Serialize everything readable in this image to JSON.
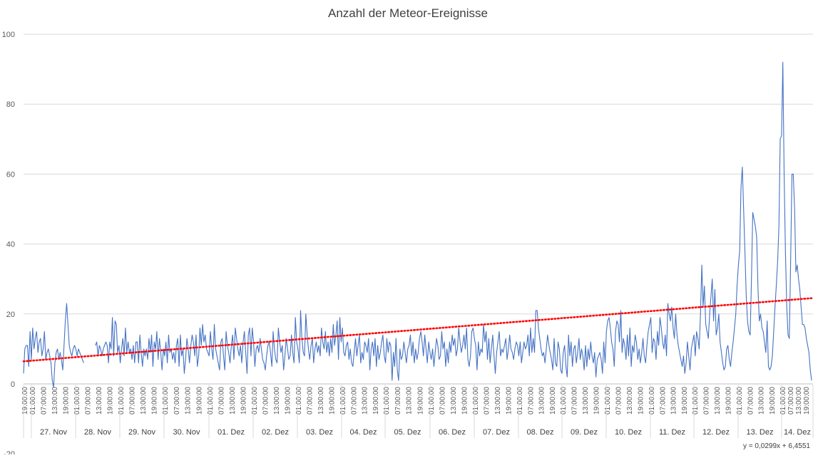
{
  "chart_data": {
    "type": "line",
    "title": "Anzahl der Meteor-Ereignisse",
    "ylim": [
      -20,
      100
    ],
    "y_ticks": [
      100,
      80,
      60,
      40,
      20,
      0,
      -20
    ],
    "grid": "horizontal",
    "x_time_label": "19:00:00",
    "x_tick_cycle": [
      "01:00:00",
      "07:00:00",
      "13:00:00",
      "19:00:00"
    ],
    "x_day_groups": [
      "27. Nov",
      "28. Nov",
      "29. Nov",
      "30. Nov",
      "01. Dez",
      "02. Dez",
      "03. Dez",
      "04. Dez",
      "05. Dez",
      "06. Dez",
      "07. Dez",
      "08. Dez",
      "09. Dez",
      "10. Dez",
      "11. Dez",
      "12. Dez",
      "13. Dez",
      "14. Dez"
    ],
    "series": [
      {
        "type": "line",
        "color": "#4472c4",
        "values": [
          3,
          10,
          11,
          11,
          5,
          15,
          7,
          16,
          10,
          13,
          15,
          9,
          12,
          13,
          8,
          10,
          15,
          7,
          9,
          10,
          8,
          6,
          1,
          -1,
          6,
          9,
          10,
          7,
          9,
          7,
          4,
          11,
          18,
          23,
          17,
          11,
          9,
          8,
          10,
          11,
          10,
          8,
          10,
          9,
          8,
          7,
          6,
          null,
          null,
          null,
          null,
          null,
          null,
          null,
          null,
          11,
          12,
          8,
          11,
          10,
          8,
          10,
          11,
          12,
          11,
          6,
          12,
          10,
          19,
          8,
          18,
          17,
          9,
          11,
          6,
          10,
          13,
          8,
          16,
          9,
          12,
          9,
          10,
          7,
          11,
          6,
          12,
          12,
          6,
          14,
          9,
          5,
          10,
          8,
          10,
          7,
          13,
          9,
          14,
          5,
          12,
          10,
          15,
          7,
          13,
          9,
          4,
          10,
          8,
          12,
          6,
          14,
          9,
          10,
          7,
          9,
          6,
          11,
          13,
          5,
          14,
          8,
          10,
          3,
          7,
          13,
          10,
          6,
          11,
          14,
          12,
          8,
          14,
          5,
          8,
          16,
          11,
          17,
          12,
          14,
          10,
          9,
          8,
          15,
          10,
          7,
          17,
          10,
          8,
          6,
          4,
          12,
          13,
          8,
          4,
          15,
          11,
          9,
          6,
          11,
          14,
          7,
          16,
          13,
          10,
          8,
          11,
          6,
          12,
          15,
          9,
          3,
          14,
          16,
          8,
          16,
          12,
          5,
          10,
          11,
          9,
          13,
          10,
          7,
          6,
          4,
          8,
          11,
          12,
          9,
          5,
          15,
          10,
          7,
          6,
          16,
          12,
          9,
          11,
          4,
          8,
          13,
          10,
          7,
          8,
          14,
          9,
          6,
          19,
          12,
          10,
          6,
          21,
          13,
          9,
          8,
          20,
          14,
          10,
          7,
          11,
          13,
          6,
          10,
          12,
          9,
          11,
          8,
          16,
          12,
          10,
          15,
          9,
          12,
          8,
          13,
          9,
          17,
          11,
          14,
          18,
          7,
          19,
          12,
          16,
          9,
          8,
          11,
          12,
          7,
          10,
          6,
          5,
          9,
          13,
          8,
          11,
          14,
          6,
          9,
          7,
          12,
          11,
          9,
          13,
          4,
          10,
          12,
          8,
          13,
          5,
          11,
          7,
          9,
          12,
          14,
          8,
          6,
          13,
          9,
          12,
          11,
          1,
          9,
          5,
          13,
          4,
          1,
          10,
          7,
          8,
          12,
          9,
          6,
          10,
          11,
          14,
          8,
          12,
          6,
          10,
          7,
          9,
          13,
          15,
          12,
          8,
          14,
          10,
          6,
          12,
          9,
          7,
          10,
          5,
          9,
          13,
          11,
          7,
          8,
          15,
          10,
          12,
          5,
          10,
          6,
          12,
          9,
          14,
          11,
          13,
          8,
          10,
          16,
          12,
          9,
          11,
          14,
          10,
          16,
          7,
          5,
          8,
          15,
          16,
          13,
          11,
          4,
          12,
          8,
          10,
          9,
          17,
          12,
          15,
          7,
          13,
          6,
          10,
          14,
          8,
          3,
          9,
          12,
          15,
          8,
          10,
          9,
          11,
          13,
          7,
          10,
          14,
          10,
          9,
          7,
          10,
          12,
          11,
          8,
          12,
          6,
          9,
          12,
          10,
          11,
          14,
          8,
          16,
          9,
          13,
          9,
          21,
          21,
          16,
          13,
          10,
          8,
          9,
          6,
          10,
          14,
          11,
          9,
          7,
          4,
          13,
          6,
          5,
          12,
          10,
          4,
          3,
          9,
          11,
          5,
          2,
          14,
          8,
          12,
          5,
          10,
          11,
          6,
          9,
          13,
          7,
          10,
          8,
          4,
          11,
          5,
          10,
          7,
          12,
          8,
          6,
          9,
          2,
          7,
          8,
          9,
          7,
          3,
          12,
          6,
          15,
          18,
          19,
          16,
          12,
          10,
          5,
          15,
          18,
          17,
          12,
          21,
          9,
          13,
          11,
          7,
          14,
          8,
          16,
          5,
          11,
          9,
          14,
          12,
          7,
          10,
          6,
          9,
          13,
          8,
          6,
          11,
          15,
          17,
          19,
          9,
          13,
          12,
          7,
          15,
          11,
          19,
          16,
          12,
          10,
          14,
          8,
          23,
          20,
          18,
          22,
          16,
          13,
          20,
          14,
          11,
          9,
          7,
          5,
          8,
          3,
          6,
          12,
          8,
          4,
          10,
          12,
          14,
          8,
          15,
          13,
          10,
          20,
          34,
          22,
          28,
          17,
          15,
          13,
          20,
          25,
          30,
          18,
          27,
          14,
          16,
          20,
          12,
          9,
          6,
          4,
          5,
          10,
          11,
          7,
          5,
          9,
          12,
          16,
          20,
          28,
          34,
          38,
          56,
          62,
          50,
          38,
          25,
          18,
          15,
          14,
          30,
          49,
          47,
          45,
          42,
          27,
          18,
          20,
          16,
          15,
          12,
          9,
          18,
          5,
          4,
          5,
          8,
          15,
          22,
          28,
          35,
          45,
          70,
          71,
          92,
          60,
          38,
          22,
          14,
          13,
          36,
          60,
          60,
          50,
          32,
          34,
          30,
          27,
          22,
          17,
          17,
          16,
          13,
          11,
          9,
          4,
          1
        ]
      },
      {
        "name": "trendline",
        "type": "linear-trend",
        "color": "#ff0000",
        "equation": "y = 0,0299x + 6,4551",
        "slope": 0.0299,
        "intercept": 6.4551
      }
    ]
  }
}
